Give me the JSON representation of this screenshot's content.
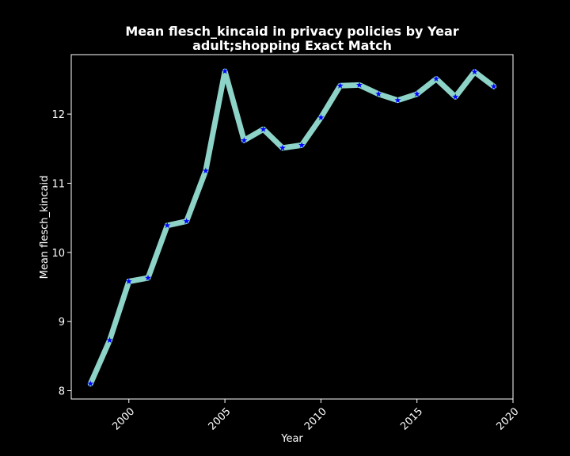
{
  "chart_data": {
    "type": "line",
    "title": "Mean flesch_kincaid in privacy policies by Year",
    "subtitle": "adult;shopping Exact Match",
    "xlabel": "Year",
    "ylabel": "Mean flesch_kincaid",
    "xlim": [
      1997.0,
      2020.0
    ],
    "ylim": [
      7.88,
      12.86
    ],
    "xticks": [
      2000,
      2005,
      2010,
      2015,
      2020
    ],
    "yticks": [
      8,
      9,
      10,
      11,
      12
    ],
    "grid": false,
    "series": [
      {
        "x": [
          1998,
          1999,
          2000,
          2001,
          2002,
          2003,
          2004,
          2005,
          2006,
          2007,
          2008,
          2009,
          2010,
          2011,
          2012,
          2013,
          2014,
          2015,
          2016,
          2017,
          2018,
          2019
        ],
        "y": [
          8.1,
          8.73,
          9.58,
          9.63,
          10.39,
          10.45,
          11.18,
          12.62,
          11.62,
          11.78,
          11.51,
          11.55,
          11.95,
          12.41,
          12.42,
          12.29,
          12.2,
          12.29,
          12.51,
          12.25,
          12.61,
          12.4
        ],
        "line_color": "#8dd3c7",
        "marker_color": "#0000ff",
        "marker": "star"
      }
    ]
  }
}
